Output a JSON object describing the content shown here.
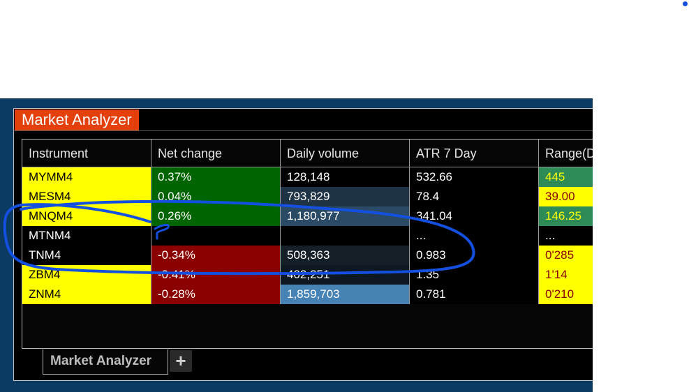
{
  "window": {
    "title": "Market Analyzer"
  },
  "colors": {
    "title_tab": "#e4400d",
    "yellow": "#ffff00",
    "dark_green": "#006400",
    "light_green": "#2e8b57",
    "dark_red": "#8b0000",
    "blue_light": "#4682b4",
    "annotation": "#1450e0"
  },
  "columns": [
    "Instrument",
    "Net change",
    "Daily volume",
    "ATR 7 Day",
    "Range(D"
  ],
  "rows": [
    {
      "instrument": "MYMM4",
      "net_change": "0.37%",
      "daily_volume": "128,148",
      "atr": "532.66",
      "range": "445",
      "styles": {
        "instrument": [
          "#ffff00",
          "#000"
        ],
        "net_change": [
          "#006400",
          "#fff"
        ],
        "daily_volume": [
          "#000",
          "#fff"
        ],
        "atr": [
          "#000",
          "#fff"
        ],
        "range": [
          "#2e8b57",
          "#ffff00"
        ]
      }
    },
    {
      "instrument": "MESM4",
      "net_change": "0.04%",
      "daily_volume": "793,829",
      "atr": "78.4",
      "range": "39.00",
      "styles": {
        "instrument": [
          "#ffff00",
          "#000"
        ],
        "net_change": [
          "#006400",
          "#fff"
        ],
        "daily_volume": [
          "#1f3347",
          "#fff"
        ],
        "atr": [
          "#000",
          "#fff"
        ],
        "range": [
          "#ffff00",
          "#8b0000"
        ]
      }
    },
    {
      "instrument": "MNQM4",
      "net_change": "0.26%",
      "daily_volume": "1,180,977",
      "atr": "341.04",
      "range": "146.25",
      "styles": {
        "instrument": [
          "#ffff00",
          "#000"
        ],
        "net_change": [
          "#006400",
          "#fff"
        ],
        "daily_volume": [
          "#2b4a66",
          "#fff"
        ],
        "atr": [
          "#000",
          "#fff"
        ],
        "range": [
          "#2e8b57",
          "#ffff00"
        ]
      }
    },
    {
      "instrument": "MTNM4",
      "net_change": "",
      "daily_volume": "",
      "atr": "...",
      "range": "...",
      "styles": {
        "instrument": [
          "#000",
          "#fff"
        ],
        "net_change": [
          "#000",
          "#fff"
        ],
        "daily_volume": [
          "#000",
          "#fff"
        ],
        "atr": [
          "#000",
          "#fff"
        ],
        "range": [
          "#000",
          "#fff"
        ]
      }
    },
    {
      "instrument": "TNM4",
      "net_change": "-0.34%",
      "daily_volume": "508,363",
      "atr": "0.983",
      "range": "0'285",
      "styles": {
        "instrument": [
          "#000",
          "#fff"
        ],
        "net_change": [
          "#8b0000",
          "#fff"
        ],
        "daily_volume": [
          "#141f28",
          "#fff"
        ],
        "atr": [
          "#000",
          "#fff"
        ],
        "range": [
          "#ffff00",
          "#8b0000"
        ]
      }
    },
    {
      "instrument": "ZBM4",
      "net_change": "-0.41%",
      "daily_volume": "402,251",
      "atr": "1.35",
      "range": "1'14",
      "styles": {
        "instrument": [
          "#ffff00",
          "#000"
        ],
        "net_change": [
          "#8b0000",
          "#fff"
        ],
        "daily_volume": [
          "#0d1822",
          "#fff"
        ],
        "atr": [
          "#000",
          "#fff"
        ],
        "range": [
          "#ffff00",
          "#8b0000"
        ]
      }
    },
    {
      "instrument": "ZNM4",
      "net_change": "-0.28%",
      "daily_volume": "1,859,703",
      "atr": "0.781",
      "range": "0'210",
      "styles": {
        "instrument": [
          "#ffff00",
          "#000"
        ],
        "net_change": [
          "#8b0000",
          "#fff"
        ],
        "daily_volume": [
          "#4682b4",
          "#fff"
        ],
        "atr": [
          "#000",
          "#fff"
        ],
        "range": [
          "#ffff00",
          "#8b0000"
        ]
      }
    }
  ],
  "bottom_tabs": {
    "active_label": "Market Analyzer",
    "add_label": "+"
  }
}
